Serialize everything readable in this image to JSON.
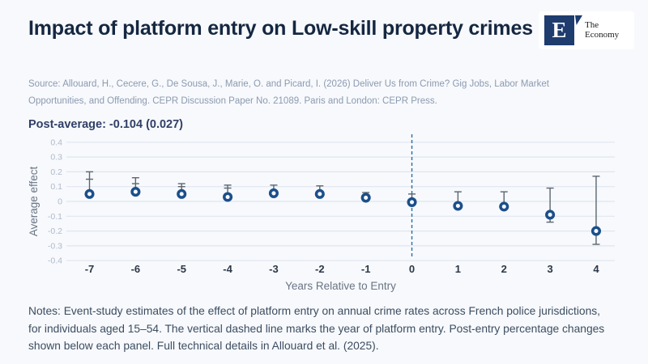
{
  "header": {
    "title": "Impact of platform entry on Low-skill property crimes",
    "logo": {
      "letter": "E",
      "line1": "The",
      "line2": "Economy"
    }
  },
  "source": "Source: Allouard, H., Cecere, G., De Sousa, J., Marie, O. and Picard, I. (2026) Deliver Us from Crime? Gig Jobs, Labor Market Opportunities, and Offending. CEPR Discussion Paper No. 21089. Paris and London: CEPR Press.",
  "post_average": "Post-average: -0.104 (0.027)",
  "notes": "Notes: Event-study estimates of the effect of platform entry on annual crime rates across French police jurisdictions, for individuals aged 15–54. The vertical dashed line marks the year of platform entry. Post-entry percentage changes shown below each panel. Full technical details in Allouard et al. (2025).",
  "colors": {
    "background": "#f7f9fc",
    "title_text": "#152741",
    "marker": "#1b4f8b",
    "marker_fill": "#f7f9fc",
    "error_bar": "#5c6670",
    "dashed_line": "#2d6ca3",
    "gridline": "#dfe6f0",
    "y_tick_label": "#b0bacc",
    "x_tick_label": "#2c3848",
    "axis_title": "#6a7585",
    "logo_navy": "#1e3c6e"
  },
  "chart_data": {
    "type": "scatter",
    "title": "",
    "xlabel": "Years Relative to Entry",
    "ylabel": "Average effect",
    "ylim": [
      -0.4,
      0.4
    ],
    "grid": true,
    "yticks": [
      {
        "value": 0.4,
        "label": "0.4"
      },
      {
        "value": 0.3,
        "label": "0.3"
      },
      {
        "value": 0.2,
        "label": "0.2"
      },
      {
        "value": 0.1,
        "label": "0.1"
      },
      {
        "value": 0.0,
        "label": "0"
      },
      {
        "value": -0.1,
        "label": "-0.1"
      },
      {
        "value": -0.2,
        "label": "-0.2"
      },
      {
        "value": -0.3,
        "label": "-0.3"
      },
      {
        "value": -0.4,
        "label": "-0.4"
      }
    ],
    "vline_x": 0,
    "points": [
      {
        "x": -7,
        "label": "-7",
        "est": 0.05,
        "ci_high": 0.2,
        "ci_low": null,
        "cap2": 0.15
      },
      {
        "x": -6,
        "label": "-6",
        "est": 0.065,
        "ci_high": 0.16,
        "ci_low": null,
        "cap2": 0.12
      },
      {
        "x": -5,
        "label": "-5",
        "est": 0.05,
        "ci_high": 0.12,
        "ci_low": null,
        "cap2": 0.1
      },
      {
        "x": -4,
        "label": "-4",
        "est": 0.03,
        "ci_high": 0.11,
        "ci_low": null,
        "cap2": 0.09
      },
      {
        "x": -3,
        "label": "-3",
        "est": 0.055,
        "ci_high": 0.11,
        "ci_low": null,
        "cap2": null
      },
      {
        "x": -2,
        "label": "-2",
        "est": 0.05,
        "ci_high": 0.105,
        "ci_low": null,
        "cap2": null
      },
      {
        "x": -1,
        "label": "-1",
        "est": 0.025,
        "ci_high": 0.06,
        "ci_low": null,
        "cap2": null
      },
      {
        "x": 0,
        "label": "0",
        "est": -0.005,
        "ci_high": 0.05,
        "ci_low": null,
        "cap2": null
      },
      {
        "x": 1,
        "label": "1",
        "est": -0.03,
        "ci_high": 0.065,
        "ci_low": null,
        "cap2": null
      },
      {
        "x": 2,
        "label": "2",
        "est": -0.035,
        "ci_high": 0.065,
        "ci_low": null,
        "cap2": null
      },
      {
        "x": 3,
        "label": "3",
        "est": -0.09,
        "ci_high": 0.09,
        "ci_low": -0.14,
        "cap2": null
      },
      {
        "x": 4,
        "label": "4",
        "est": -0.2,
        "ci_high": 0.17,
        "ci_low": -0.29,
        "cap2": null
      }
    ]
  }
}
